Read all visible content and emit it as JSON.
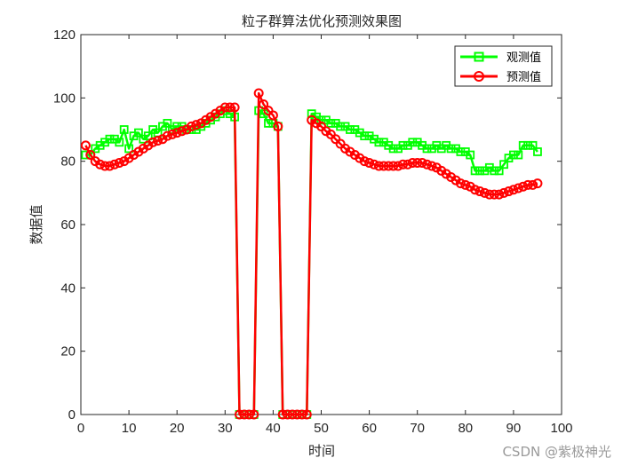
{
  "chart_data": {
    "type": "line",
    "title": "粒子群算法优化预测效果图",
    "xlabel": "时间",
    "ylabel": "数据值",
    "xlim": [
      0,
      100
    ],
    "ylim": [
      0,
      120
    ],
    "xticks": [
      0,
      10,
      20,
      30,
      40,
      50,
      60,
      70,
      80,
      90,
      100
    ],
    "yticks": [
      0,
      20,
      40,
      60,
      80,
      100,
      120
    ],
    "legend_position": "top-right",
    "series": [
      {
        "name": "观测值",
        "color": "#00ff00",
        "marker": "square",
        "x": [
          1,
          2,
          3,
          4,
          5,
          6,
          7,
          8,
          9,
          10,
          11,
          12,
          13,
          14,
          15,
          16,
          17,
          18,
          19,
          20,
          21,
          22,
          23,
          24,
          25,
          26,
          27,
          28,
          29,
          30,
          31,
          32,
          33,
          34,
          35,
          36,
          37,
          38,
          39,
          40,
          41,
          42,
          43,
          44,
          45,
          46,
          47,
          48,
          49,
          50,
          51,
          52,
          53,
          54,
          55,
          56,
          57,
          58,
          59,
          60,
          61,
          62,
          63,
          64,
          65,
          66,
          67,
          68,
          69,
          70,
          71,
          72,
          73,
          74,
          75,
          76,
          77,
          78,
          79,
          80,
          81,
          82,
          83,
          84,
          85,
          86,
          87,
          88,
          89,
          90,
          91,
          92,
          93,
          94,
          95
        ],
        "values": [
          82,
          82,
          84,
          85,
          86,
          87,
          87,
          86,
          90,
          84,
          88,
          89,
          87,
          88,
          90,
          89,
          91,
          92,
          90,
          91,
          91,
          90,
          90,
          90,
          91,
          92,
          93,
          94,
          95,
          96,
          95,
          94,
          0,
          0,
          0,
          0,
          96,
          95,
          92,
          92,
          91,
          0,
          0,
          0,
          0,
          0,
          0,
          95,
          94,
          93,
          93,
          92,
          92,
          91,
          91,
          90,
          90,
          89,
          88,
          88,
          87,
          86,
          86,
          85,
          84,
          84,
          85,
          85,
          86,
          86,
          85,
          84,
          84,
          85,
          84,
          85,
          84,
          84,
          83,
          83,
          82,
          77,
          77,
          77,
          78,
          77,
          77,
          79,
          81,
          82,
          82,
          85,
          85,
          85,
          83
        ]
      },
      {
        "name": "预测值",
        "color": "#ff0000",
        "marker": "circle",
        "x": [
          1,
          2,
          3,
          4,
          5,
          6,
          7,
          8,
          9,
          10,
          11,
          12,
          13,
          14,
          15,
          16,
          17,
          18,
          19,
          20,
          21,
          22,
          23,
          24,
          25,
          26,
          27,
          28,
          29,
          30,
          31,
          32,
          33,
          34,
          35,
          36,
          37,
          38,
          39,
          40,
          41,
          42,
          43,
          44,
          45,
          46,
          47,
          48,
          49,
          50,
          51,
          52,
          53,
          54,
          55,
          56,
          57,
          58,
          59,
          60,
          61,
          62,
          63,
          64,
          65,
          66,
          67,
          68,
          69,
          70,
          71,
          72,
          73,
          74,
          75,
          76,
          77,
          78,
          79,
          80,
          81,
          82,
          83,
          84,
          85,
          86,
          87,
          88,
          89,
          90,
          91,
          92,
          93,
          94,
          95
        ],
        "values": [
          85,
          82,
          80,
          79,
          78.5,
          78.5,
          79,
          79.5,
          80,
          81,
          82,
          83,
          84,
          85,
          86,
          86.5,
          87,
          88,
          88.5,
          89,
          89.5,
          90,
          91,
          91.5,
          92,
          93,
          94,
          95,
          96,
          97,
          97,
          97,
          0,
          0,
          0,
          0,
          101.5,
          98,
          96,
          94.5,
          91,
          0,
          0,
          0,
          0,
          0,
          0,
          93,
          92,
          91,
          89.5,
          88.5,
          87,
          85.5,
          84,
          83,
          82,
          81,
          80,
          79.5,
          79,
          78.5,
          78.5,
          78.5,
          78.5,
          78.5,
          79,
          79,
          79.5,
          79.5,
          79.5,
          79,
          78.5,
          78,
          77,
          76,
          75,
          74,
          73,
          72.5,
          72,
          71,
          70.5,
          70,
          69.5,
          69.5,
          69.5,
          70,
          70.5,
          71,
          71.5,
          72,
          72.5,
          72.5,
          73
        ]
      }
    ]
  },
  "watermark": "CSDN @紫极神光"
}
